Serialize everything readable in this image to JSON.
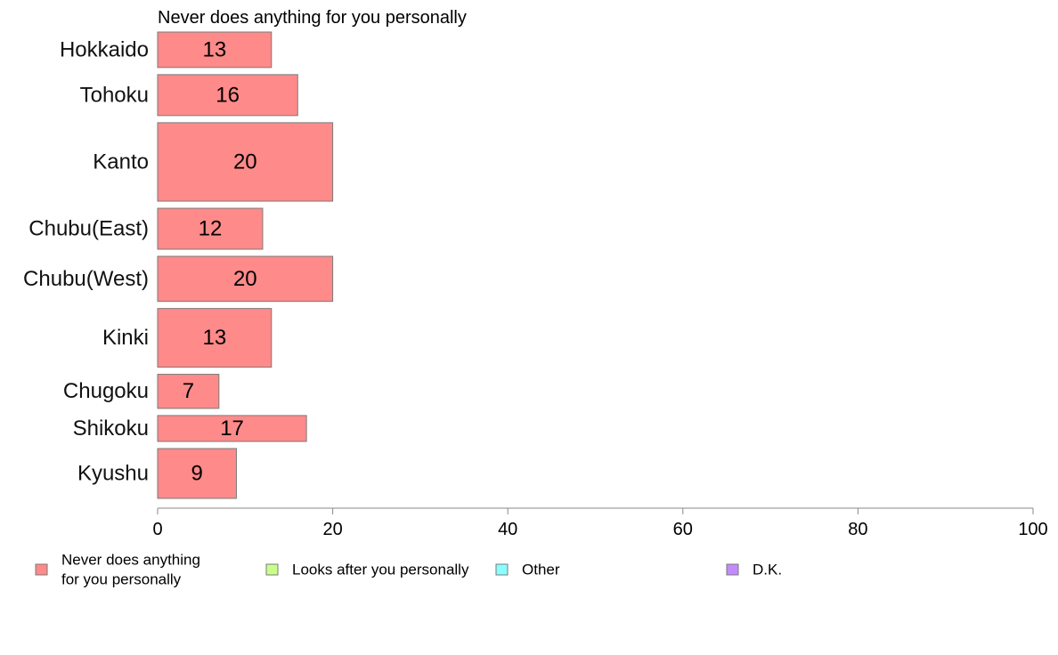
{
  "chart_data": {
    "type": "bar",
    "orientation": "horizontal",
    "title": "Never does anything for you personally",
    "categories": [
      "Hokkaido",
      "Tohoku",
      "Kanto",
      "Chubu(East)",
      "Chubu(West)",
      "Kinki",
      "Chugoku",
      "Shikoku",
      "Kyushu"
    ],
    "relative_bar_widths": [
      0.52,
      0.6,
      1.15,
      0.6,
      0.66,
      0.86,
      0.5,
      0.38,
      0.73
    ],
    "series": [
      {
        "name": "Never does anything for you personally",
        "values": [
          13,
          16,
          20,
          12,
          20,
          13,
          7,
          17,
          9
        ],
        "color": "#ff8a8a"
      }
    ],
    "xlim": [
      0,
      100
    ],
    "x_ticks": [
      0,
      20,
      40,
      60,
      80,
      100
    ],
    "grid": false,
    "legend": {
      "placement": "bottom",
      "items": [
        {
          "lines": [
            "Never does anything",
            "for you personally"
          ],
          "color": "#ff8a8a"
        },
        {
          "lines": [
            "Looks after you personally"
          ],
          "color": "#c8ff8a"
        },
        {
          "lines": [
            "Other"
          ],
          "color": "#8affff"
        },
        {
          "lines": [
            "D.K."
          ],
          "color": "#c38aff"
        }
      ]
    }
  }
}
